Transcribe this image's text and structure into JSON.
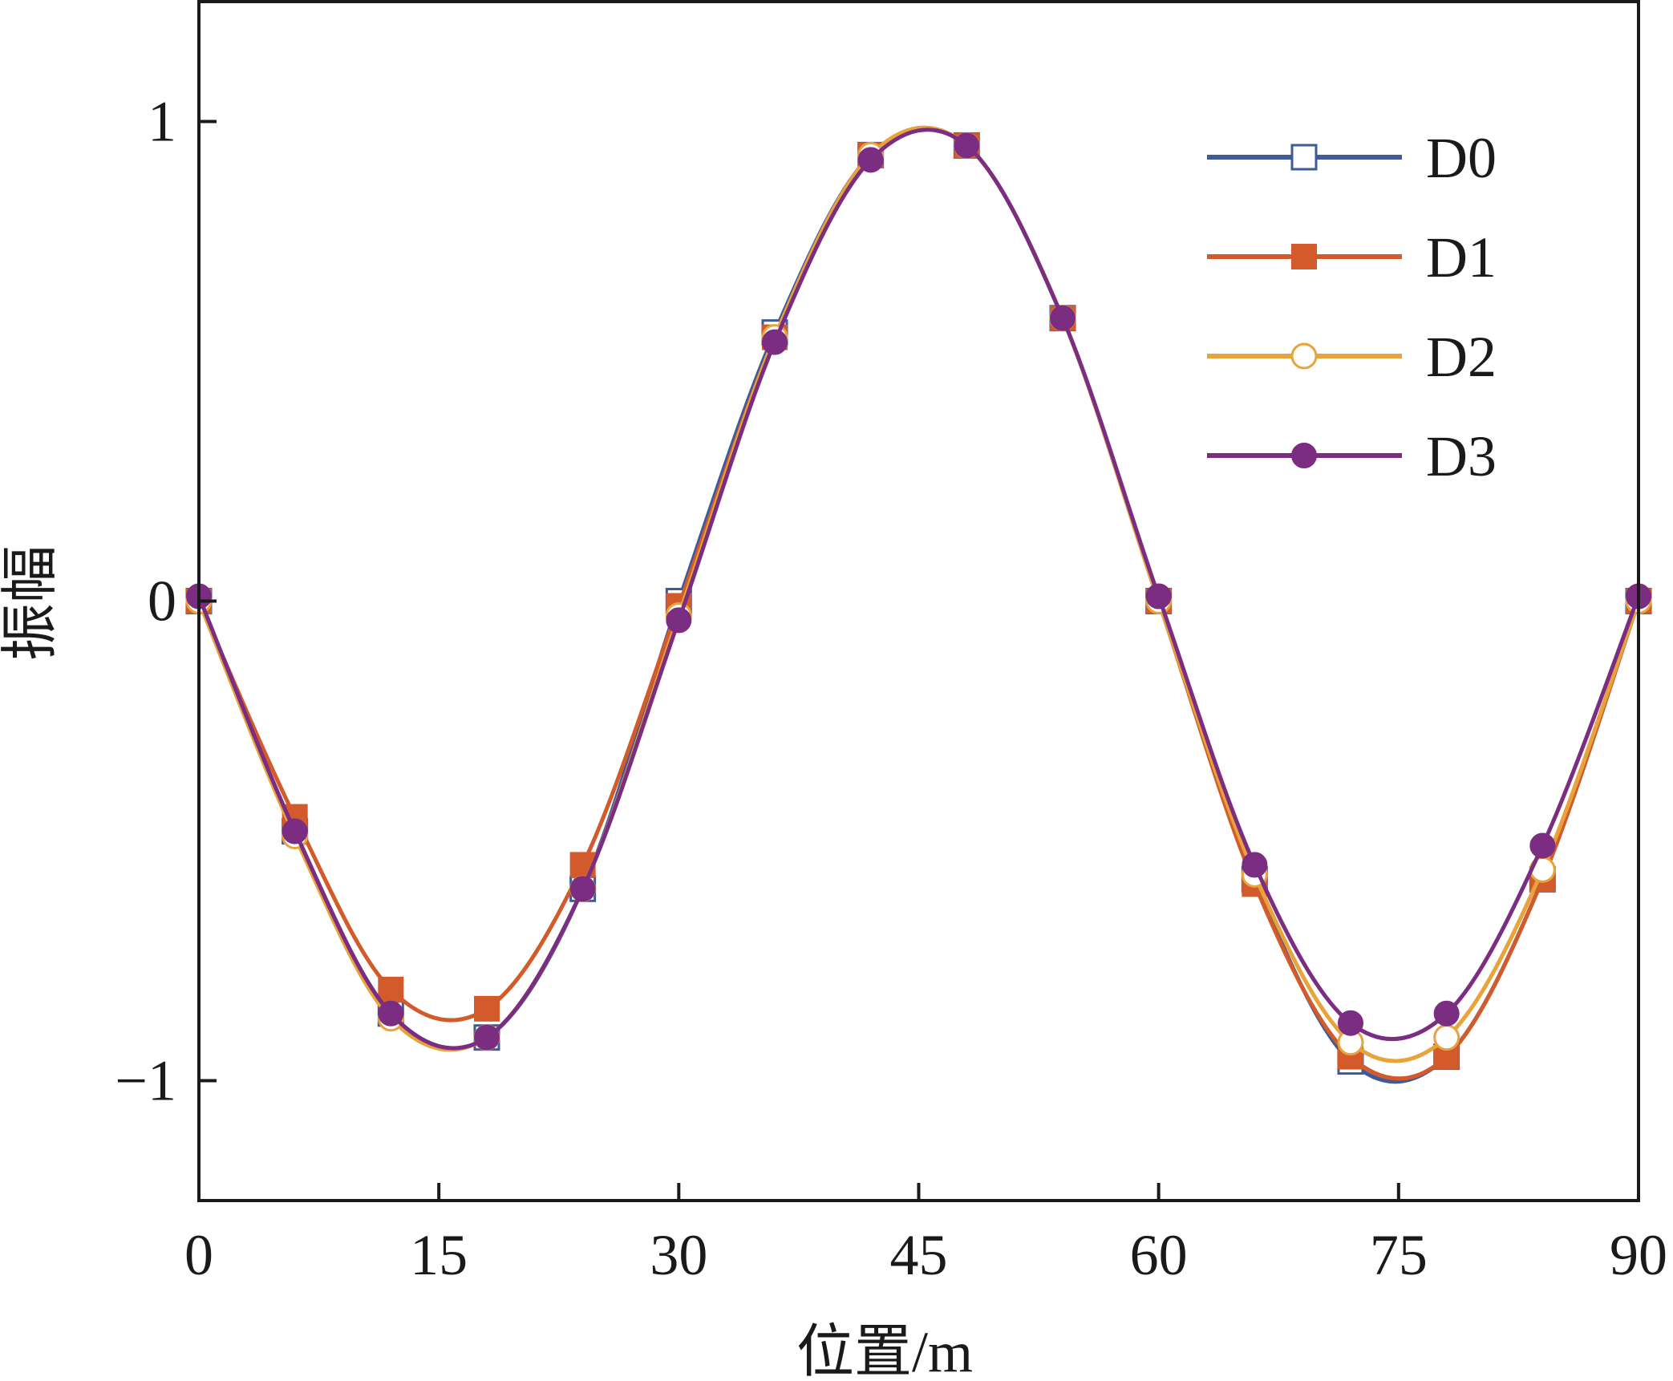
{
  "chart_data": {
    "type": "line",
    "title": "",
    "xlabel": "位置/m",
    "ylabel": "振幅",
    "xlim": [
      0,
      90
    ],
    "ylim": [
      -1.25,
      1.25
    ],
    "xticks": [
      0,
      15,
      30,
      45,
      60,
      75,
      90
    ],
    "xtick_labels": [
      "0",
      "15",
      "30",
      "45",
      "60",
      "75",
      "90"
    ],
    "yticks": [
      -1,
      0,
      1
    ],
    "ytick_labels": [
      "−1",
      "0",
      "1"
    ],
    "grid": false,
    "legend_position": "top-right",
    "x": [
      0,
      6,
      12,
      18,
      24,
      30,
      36,
      42,
      48,
      54,
      60,
      66,
      72,
      78,
      84,
      90
    ],
    "series": [
      {
        "name": "D0",
        "color": "#3d5a99",
        "marker": "square-open",
        "values": [
          0.0,
          -0.48,
          -0.86,
          -0.91,
          -0.6,
          0.0,
          0.56,
          0.93,
          0.95,
          0.59,
          0.0,
          -0.58,
          -0.96,
          -0.95,
          -0.58,
          0.0
        ]
      },
      {
        "name": "D1",
        "color": "#d35a2a",
        "marker": "square-filled",
        "values": [
          0.0,
          -0.45,
          -0.81,
          -0.85,
          -0.55,
          -0.01,
          0.55,
          0.93,
          0.95,
          0.59,
          0.0,
          -0.59,
          -0.95,
          -0.95,
          -0.58,
          0.0
        ]
      },
      {
        "name": "D2",
        "color": "#e8a33a",
        "marker": "circle-open",
        "values": [
          0.0,
          -0.49,
          -0.87,
          -0.91,
          -0.6,
          -0.03,
          0.55,
          0.93,
          0.95,
          0.59,
          0.0,
          -0.57,
          -0.92,
          -0.91,
          -0.56,
          0.0
        ]
      },
      {
        "name": "D3",
        "color": "#7b2d82",
        "marker": "circle-filled",
        "values": [
          0.01,
          -0.48,
          -0.86,
          -0.91,
          -0.6,
          -0.04,
          0.54,
          0.92,
          0.95,
          0.59,
          0.01,
          -0.55,
          -0.88,
          -0.86,
          -0.51,
          0.01
        ]
      }
    ]
  }
}
